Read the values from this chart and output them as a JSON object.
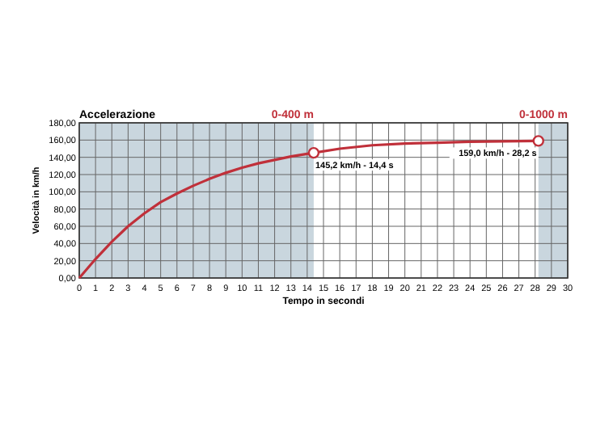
{
  "chart_data": {
    "type": "line",
    "title": "Accelerazione",
    "xlabel": "Tempo in secondi",
    "ylabel": "Velocità in km/h",
    "series": [
      {
        "type": "line",
        "color": "#c0303a",
        "x": [
          0,
          1,
          2,
          3,
          4,
          5,
          6,
          7,
          8,
          9,
          10,
          11,
          12,
          13,
          14,
          14.4,
          16,
          18,
          20,
          22,
          24,
          26,
          28.2
        ],
        "values": [
          0,
          22,
          42,
          60,
          75,
          88,
          98,
          107,
          115,
          122,
          128,
          133,
          137,
          141,
          144,
          145.2,
          150,
          154,
          156,
          157,
          158,
          158.5,
          159
        ]
      },
      {
        "type": "scatter",
        "color": "#c0303a",
        "marker": "circle",
        "x": [
          14.4,
          28.2
        ],
        "values": [
          145.2,
          159
        ]
      }
    ],
    "xlim": [
      0,
      30
    ],
    "xticks": [
      0,
      1,
      2,
      3,
      4,
      5,
      6,
      7,
      8,
      9,
      10,
      11,
      12,
      13,
      14,
      15,
      16,
      17,
      18,
      19,
      20,
      21,
      22,
      23,
      24,
      25,
      26,
      27,
      28,
      29,
      30
    ],
    "ylim": [
      0,
      180
    ],
    "yticks": [
      {
        "value": 0,
        "label": "0,00"
      },
      {
        "value": 20,
        "label": "20,00"
      },
      {
        "value": 40,
        "label": "40,00"
      },
      {
        "value": 60,
        "label": "60,00"
      },
      {
        "value": 80,
        "label": "80,00"
      },
      {
        "value": 100,
        "label": "100,00"
      },
      {
        "value": 120,
        "label": "120,00"
      },
      {
        "value": 140,
        "label": "140,00"
      },
      {
        "value": 160,
        "label": "160,00"
      },
      {
        "value": 180,
        "label": "180,00"
      }
    ],
    "grid": true,
    "bands": [
      {
        "axis": "x",
        "from": 0,
        "to": 14.4,
        "label": "0-400 m",
        "color": "#c9d6de"
      },
      {
        "axis": "x",
        "from": 28.2,
        "to": 30,
        "label": "0-1000 m",
        "color": "#c9d6de"
      }
    ],
    "annotations": [
      {
        "text": "145,2 km/h - 14,4 s",
        "x": 14.4,
        "y": 145.2
      },
      {
        "text": "159,0 km/h - 28,2 s",
        "x": 28.2,
        "y": 159
      }
    ]
  }
}
